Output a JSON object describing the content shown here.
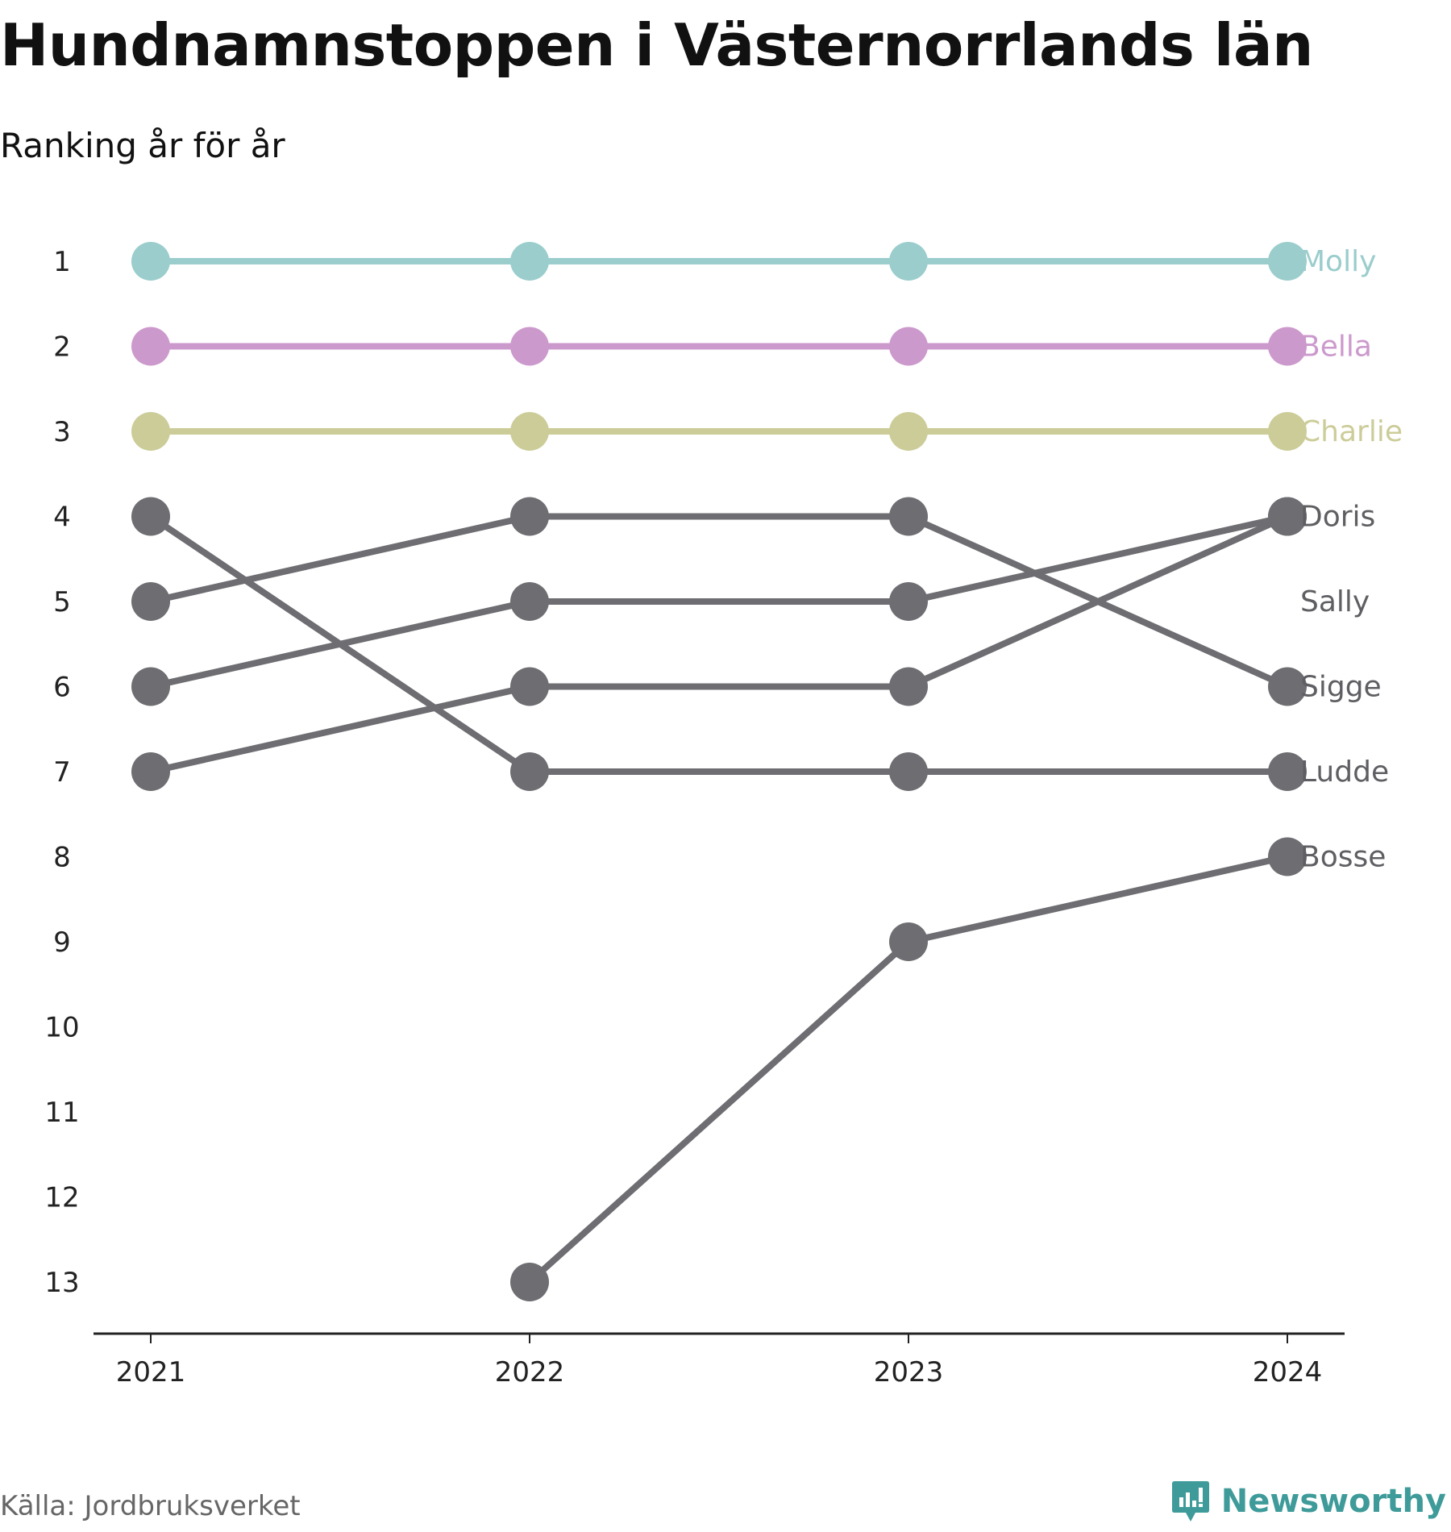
{
  "title": "Hundnamnstoppen i Västernorrlands län",
  "subtitle": "Ranking år för år",
  "source": "Källa: Jordbruksverket",
  "brand": {
    "name": "Newsworthy",
    "icon": "newsworthy-logo-icon",
    "color": "#3e9b9a"
  },
  "chart_data": {
    "type": "line",
    "subtype": "bump",
    "title": "Hundnamnstoppen i Västernorrlands län",
    "subtitle": "Ranking år för år",
    "x": [
      "2021",
      "2022",
      "2023",
      "2024"
    ],
    "x_tick_labels": [
      "2021",
      "2022",
      "2023",
      "2024"
    ],
    "y_tick_labels": [
      "1",
      "2",
      "3",
      "4",
      "5",
      "6",
      "7",
      "8",
      "9",
      "10",
      "11",
      "12",
      "13"
    ],
    "y_reversed": true,
    "ylim": [
      1,
      13
    ],
    "grid": false,
    "legend": "direct labels at right end",
    "series": [
      {
        "name": "Molly",
        "color": "#9acdcc",
        "values": [
          1,
          1,
          1,
          1
        ]
      },
      {
        "name": "Bella",
        "color": "#cc99cc",
        "values": [
          2,
          2,
          2,
          2
        ]
      },
      {
        "name": "Charlie",
        "color": "#cccc99",
        "values": [
          3,
          3,
          3,
          3
        ]
      },
      {
        "name": "Doris",
        "color": "#6d6d72",
        "values": [
          6,
          5,
          5,
          4
        ]
      },
      {
        "name": "Sally",
        "color": "#6d6d72",
        "values": [
          7,
          6,
          6,
          4
        ]
      },
      {
        "name": "Sigge",
        "color": "#6d6d72",
        "values": [
          5,
          4,
          4,
          6
        ]
      },
      {
        "name": "Ludde",
        "color": "#6d6d72",
        "values": [
          4,
          7,
          7,
          7
        ]
      },
      {
        "name": "Bosse",
        "color": "#6d6d72",
        "values": [
          null,
          13,
          9,
          8
        ]
      }
    ],
    "end_label_rank": {
      "Doris": 4,
      "Sally": 5,
      "Sigge": 6
    }
  }
}
